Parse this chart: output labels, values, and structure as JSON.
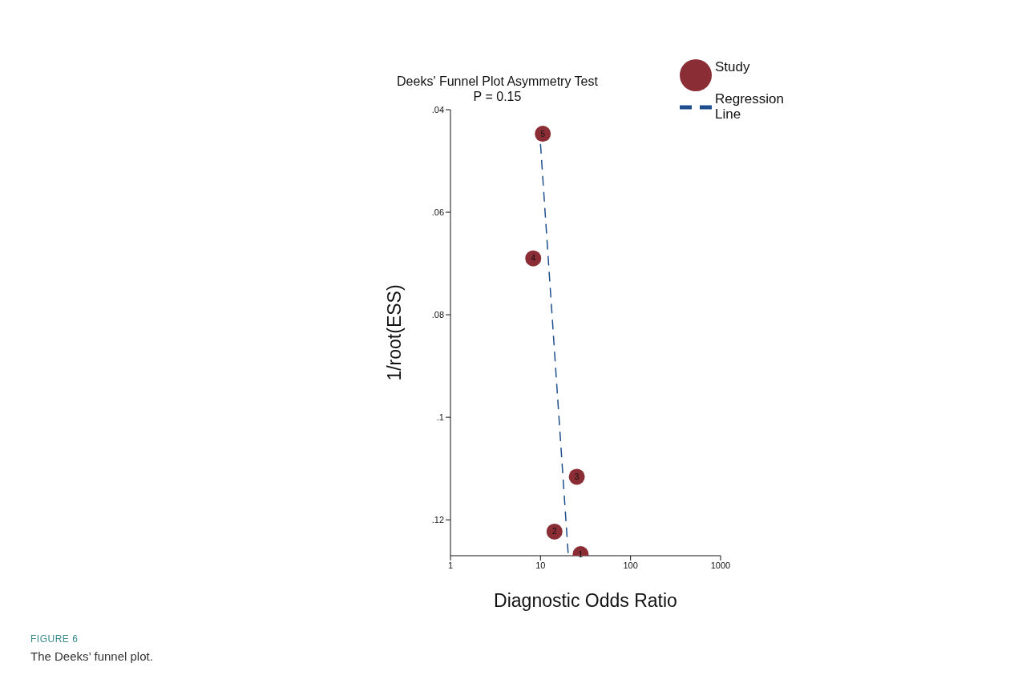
{
  "chart_data": {
    "type": "scatter",
    "title": "Deeks' Funnel Plot Asymmetry Test",
    "subtitle": "P = 0.15",
    "xlabel": "Diagnostic Odds Ratio",
    "ylabel": "1/root(ESS)",
    "log": "x",
    "xlim": [
      1,
      1000
    ],
    "xticks": [
      1,
      10,
      100,
      1000
    ],
    "ylim": [
      0.127,
      0.04
    ],
    "yticks": [
      {
        "value": 0.04,
        "label": ".04"
      },
      {
        "value": 0.06,
        "label": ".06"
      },
      {
        "value": 0.08,
        "label": ".08"
      },
      {
        "value": 0.1,
        "label": ".1"
      },
      {
        "value": 0.12,
        "label": ".12"
      }
    ],
    "grid": false,
    "legend": "top right",
    "marker": "circle",
    "series": [
      {
        "name": "Study",
        "type": "scatter",
        "color": "#8b2d35",
        "x": [
          27.9,
          14.3,
          25.3,
          8.3,
          10.6
        ],
        "values": [
          0.1267,
          0.1223,
          0.1116,
          0.069,
          0.0447
        ]
      },
      {
        "name": "Regression Line",
        "type": "line",
        "line_style": "dashed",
        "marker": "none",
        "color": "#1f4e8c",
        "x": [
          10,
          20.3
        ],
        "values": [
          0.0467,
          0.1267
        ]
      }
    ],
    "annotations": [
      {
        "text": "1",
        "x": 27.9,
        "y": 0.1267
      },
      {
        "text": "2",
        "x": 14.3,
        "y": 0.1223
      },
      {
        "text": "3",
        "x": 25.3,
        "y": 0.1116
      },
      {
        "text": "4",
        "x": 8.3,
        "y": 0.069
      },
      {
        "text": "5",
        "x": 10.6,
        "y": 0.0447
      },
      "FIGURE 6",
      "The Deeks’ funnel plot."
    ]
  }
}
